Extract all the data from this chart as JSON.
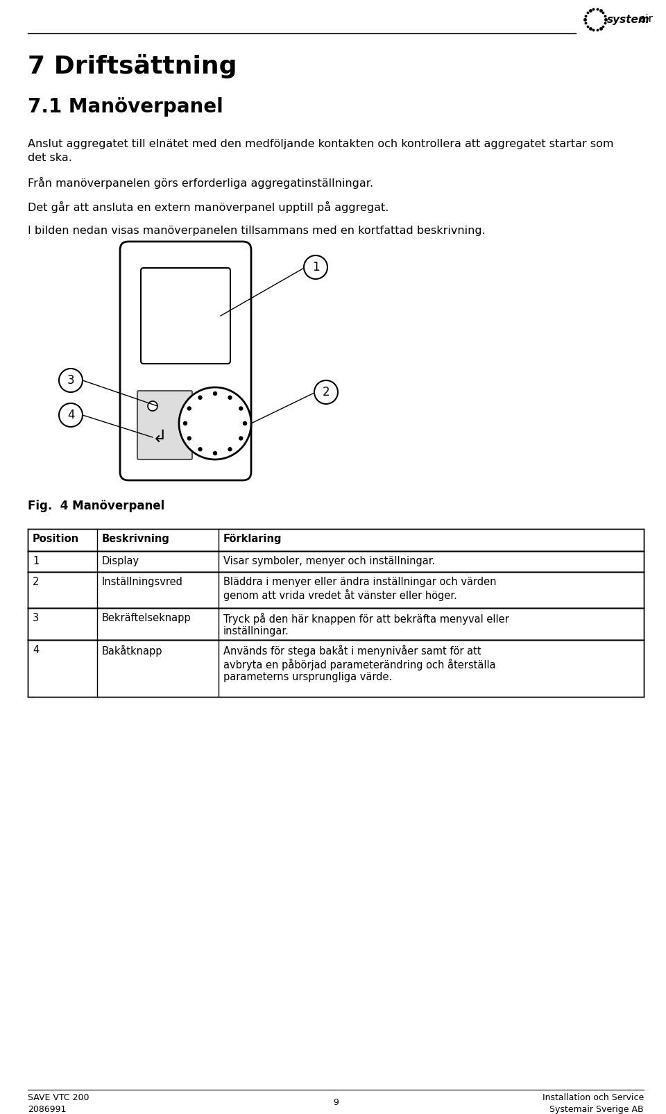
{
  "page_title": "7 Driftsättning",
  "section_title": "7.1 Manöverpanel",
  "body_text_1": "Anslut aggregatet till elnätet med den medföljande kontakten och kontrollera att aggregatet startar som",
  "body_text_1b": "det ska.",
  "body_text_2": "Från manöverpanelen görs erforderliga aggregatinställningar.",
  "body_text_3": "Det går att ansluta en extern manöverpanel upptill på aggregat.",
  "body_text_4": "I bilden nedan visas manöverpanelen tillsammans med en kortfattad beskrivning.",
  "fig_caption": "Fig.  4 Manöverpanel",
  "table_headers": [
    "Position",
    "Beskrivning",
    "Förklaring"
  ],
  "table_rows": [
    [
      "1",
      "Display",
      "Visar symboler, menyer och inställningar."
    ],
    [
      "2",
      "Inställningsvred",
      "Bläddra i menyer eller ändra inställningar och värden\ngenom att vrida vredet åt vänster eller höger."
    ],
    [
      "3",
      "Bekräftelseknapp",
      "Tryck på den här knappen för att bekräfta menyval eller\ninställningar."
    ],
    [
      "4",
      "Bakåtknapp",
      "Används för stega bakåt i menynivåer samt för att\navbryta en påbörjad parameterändring och återställa\nparameterns ursprungliga värde."
    ]
  ],
  "footer_left_top": "SAVE VTC 200",
  "footer_left_bottom": "2086991",
  "footer_center": "9",
  "footer_right_top": "Installation och Service",
  "footer_right_bottom": "Systemair Sverige AB",
  "background_color": "#ffffff",
  "text_color": "#000000"
}
